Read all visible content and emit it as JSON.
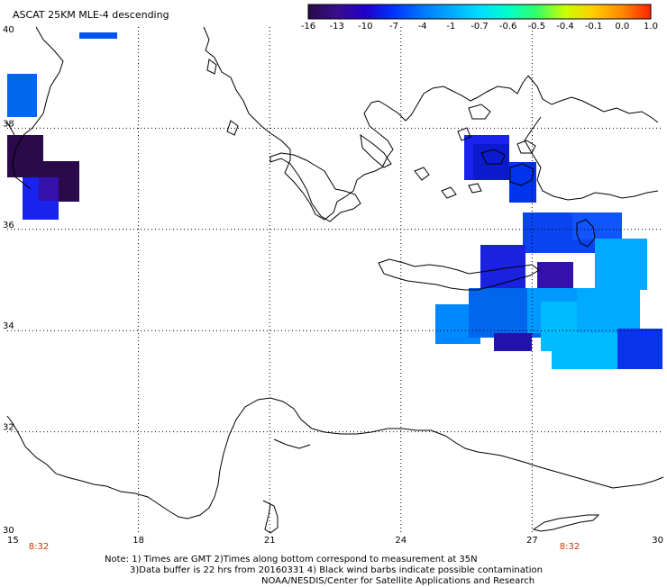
{
  "title": "ASCAT 25KM MLE-4 descending",
  "colorbar": {
    "labels": [
      "-16",
      "-13",
      "-10",
      "-7",
      "-4",
      "-1",
      "-0.7",
      "-0.6",
      "-0.5",
      "-0.4",
      "-0.1",
      "0.0",
      "1.0"
    ],
    "colors": [
      "#2a0a4a",
      "#3a0d8c",
      "#2200cc",
      "#0033ff",
      "#0077ff",
      "#00aaff",
      "#00ddff",
      "#00ffcc",
      "#33ff66",
      "#ccff00",
      "#ffcc00",
      "#ff8800",
      "#ff2200"
    ]
  },
  "axes": {
    "lon_labels": [
      "15",
      "18",
      "21",
      "24",
      "27",
      "30"
    ],
    "lat_labels": [
      "40",
      "38",
      "36",
      "34",
      "32",
      "30"
    ],
    "time_labels": [
      "8:32",
      "8:32"
    ]
  },
  "notes": {
    "line1": "Note: 1) Times are GMT 2)Times along bottom correspond to measurement at 35N",
    "line2": "3)Data buffer is 22 hrs from 20160331 4) Black wind barbs indicate possible contamination",
    "line3": "NOAA/NESDIS/Center for Satellite Applications and Research"
  }
}
